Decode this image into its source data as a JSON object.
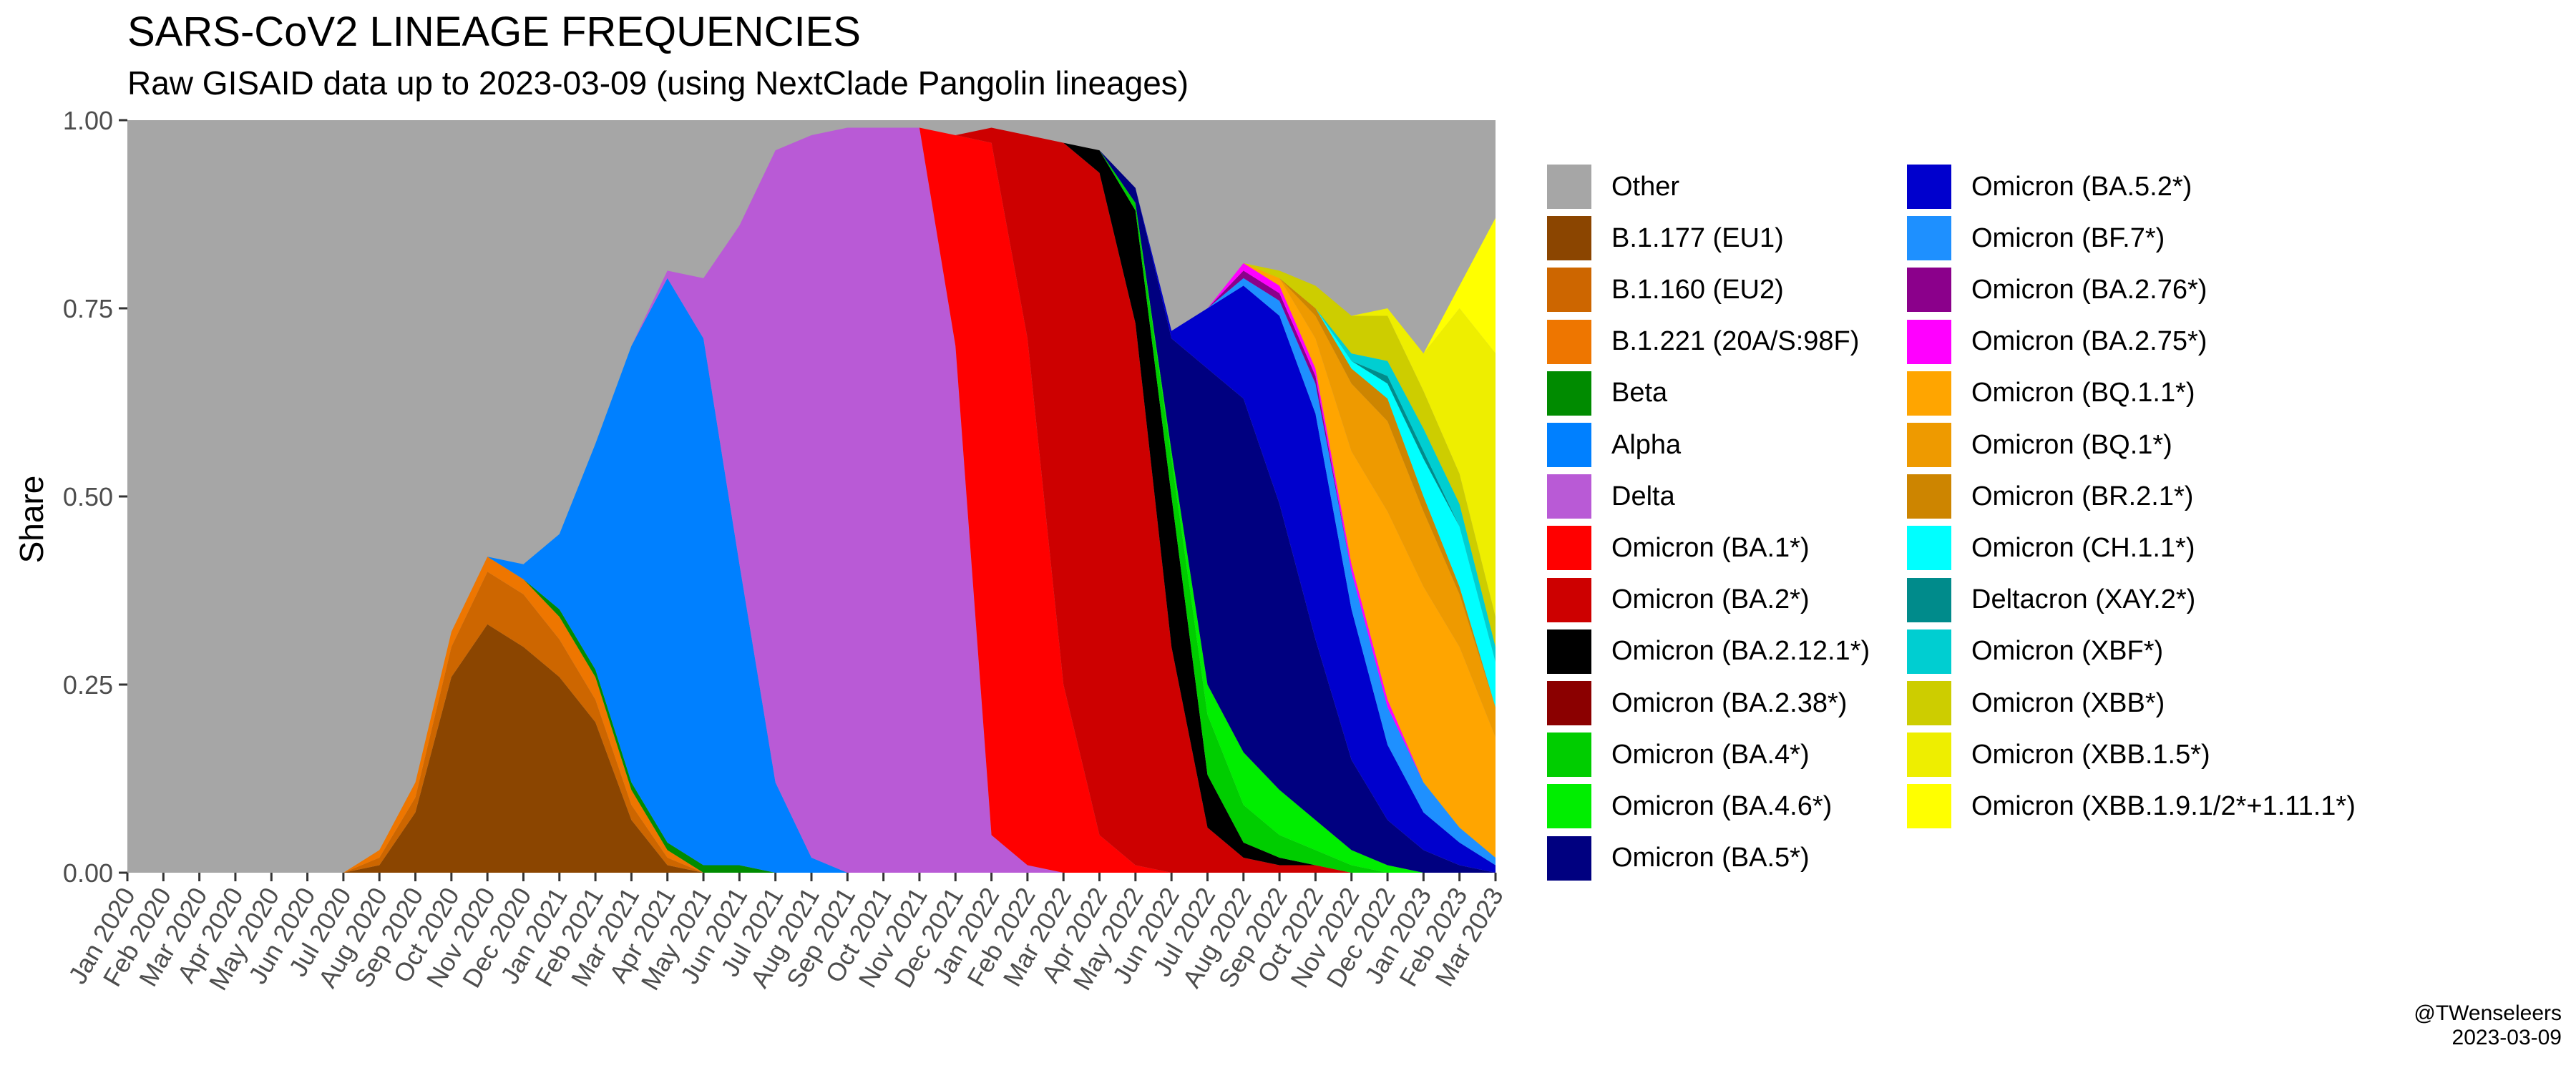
{
  "chart_data": {
    "type": "area",
    "title": "SARS-CoV2 LINEAGE FREQUENCIES",
    "subtitle": "Raw GISAID data up to 2023-03-09 (using NextClade Pangolin lineages)",
    "ylabel": "Share",
    "ylim": [
      0,
      1
    ],
    "stacking": "fill",
    "grid": false,
    "legend_position": "right",
    "yticks": [
      "0.00",
      "0.25",
      "0.50",
      "0.75",
      "1.00"
    ],
    "x_labels": [
      "Jan 2020",
      "Feb 2020",
      "Mar 2020",
      "Apr 2020",
      "May 2020",
      "Jun 2020",
      "Jul 2020",
      "Aug 2020",
      "Sep 2020",
      "Oct 2020",
      "Nov 2020",
      "Dec 2020",
      "Jan 2021",
      "Feb 2021",
      "Mar 2021",
      "Apr 2021",
      "May 2021",
      "Jun 2021",
      "Jul 2021",
      "Aug 2021",
      "Sep 2021",
      "Oct 2021",
      "Nov 2021",
      "Dec 2021",
      "Jan 2022",
      "Feb 2022",
      "Mar 2022",
      "Apr 2022",
      "May 2022",
      "Jun 2022",
      "Jul 2022",
      "Aug 2022",
      "Sep 2022",
      "Oct 2022",
      "Nov 2022",
      "Dec 2022",
      "Jan 2023",
      "Feb 2023",
      "Mar 2023"
    ],
    "series": [
      {
        "name": "B.1.177 (EU1)",
        "color": "#8B4500",
        "values": [
          0,
          0,
          0,
          0,
          0,
          0,
          0,
          0.01,
          0.08,
          0.26,
          0.33,
          0.3,
          0.26,
          0.2,
          0.07,
          0.01,
          0,
          0,
          0,
          0,
          0,
          0,
          0,
          0,
          0,
          0,
          0,
          0,
          0,
          0,
          0,
          0,
          0,
          0,
          0,
          0,
          0,
          0,
          0
        ]
      },
      {
        "name": "B.1.160 (EU2)",
        "color": "#CD6600",
        "values": [
          0,
          0,
          0,
          0,
          0,
          0,
          0,
          0.01,
          0.02,
          0.04,
          0.07,
          0.07,
          0.05,
          0.03,
          0.02,
          0.01,
          0,
          0,
          0,
          0,
          0,
          0,
          0,
          0,
          0,
          0,
          0,
          0,
          0,
          0,
          0,
          0,
          0,
          0,
          0,
          0,
          0,
          0,
          0
        ]
      },
      {
        "name": "B.1.221 (20A/S:98F)",
        "color": "#EE7600",
        "values": [
          0,
          0,
          0,
          0,
          0,
          0,
          0,
          0.01,
          0.02,
          0.02,
          0.02,
          0.02,
          0.03,
          0.03,
          0.02,
          0.01,
          0,
          0,
          0,
          0,
          0,
          0,
          0,
          0,
          0,
          0,
          0,
          0,
          0,
          0,
          0,
          0,
          0,
          0,
          0,
          0,
          0,
          0,
          0
        ]
      },
      {
        "name": "Beta",
        "color": "#008B00",
        "values": [
          0,
          0,
          0,
          0,
          0,
          0,
          0,
          0,
          0,
          0,
          0,
          0,
          0.01,
          0.01,
          0.01,
          0.01,
          0.01,
          0.01,
          0,
          0,
          0,
          0,
          0,
          0,
          0,
          0,
          0,
          0,
          0,
          0,
          0,
          0,
          0,
          0,
          0,
          0,
          0,
          0,
          0
        ]
      },
      {
        "name": "Alpha",
        "color": "#0080FF",
        "values": [
          0,
          0,
          0,
          0,
          0,
          0,
          0,
          0,
          0,
          0,
          0,
          0.02,
          0.1,
          0.3,
          0.58,
          0.75,
          0.7,
          0.4,
          0.12,
          0.02,
          0,
          0,
          0,
          0,
          0,
          0,
          0,
          0,
          0,
          0,
          0,
          0,
          0,
          0,
          0,
          0,
          0,
          0,
          0
        ]
      },
      {
        "name": "Delta",
        "color": "#B95AD6",
        "values": [
          0,
          0,
          0,
          0,
          0,
          0,
          0,
          0,
          0,
          0,
          0,
          0,
          0,
          0,
          0,
          0.01,
          0.08,
          0.45,
          0.84,
          0.96,
          0.99,
          0.99,
          0.99,
          0.7,
          0.05,
          0.01,
          0,
          0,
          0,
          0,
          0,
          0,
          0,
          0,
          0,
          0,
          0,
          0,
          0
        ]
      },
      {
        "name": "Omicron (BA.1*)",
        "color": "#FF0000",
        "values": [
          0,
          0,
          0,
          0,
          0,
          0,
          0,
          0,
          0,
          0,
          0,
          0,
          0,
          0,
          0,
          0,
          0,
          0,
          0,
          0,
          0,
          0,
          0,
          0.28,
          0.92,
          0.7,
          0.25,
          0.05,
          0.01,
          0,
          0,
          0,
          0,
          0,
          0,
          0,
          0,
          0,
          0
        ]
      },
      {
        "name": "Omicron (BA.2*)",
        "color": "#CD0000",
        "values": [
          0,
          0,
          0,
          0,
          0,
          0,
          0,
          0,
          0,
          0,
          0,
          0,
          0,
          0,
          0,
          0,
          0,
          0,
          0,
          0,
          0,
          0,
          0,
          0,
          0.02,
          0.27,
          0.72,
          0.88,
          0.72,
          0.3,
          0.06,
          0.02,
          0.01,
          0.01,
          0,
          0,
          0,
          0,
          0
        ]
      },
      {
        "name": "Omicron (BA.2.12.1*)",
        "color": "#000000",
        "values": [
          0,
          0,
          0,
          0,
          0,
          0,
          0,
          0,
          0,
          0,
          0,
          0,
          0,
          0,
          0,
          0,
          0,
          0,
          0,
          0,
          0,
          0,
          0,
          0,
          0,
          0,
          0,
          0.03,
          0.15,
          0.2,
          0.07,
          0.02,
          0.01,
          0,
          0,
          0,
          0,
          0,
          0
        ]
      },
      {
        "name": "Omicron (BA.2.38*)",
        "color": "#8B0000",
        "values": [
          0,
          0,
          0,
          0,
          0,
          0,
          0,
          0,
          0,
          0,
          0,
          0,
          0,
          0,
          0,
          0,
          0,
          0,
          0,
          0,
          0,
          0,
          0,
          0,
          0,
          0,
          0,
          0,
          0,
          0,
          0,
          0,
          0,
          0,
          0,
          0,
          0,
          0,
          0
        ]
      },
      {
        "name": "Omicron (BA.4*)",
        "color": "#00CD00",
        "values": [
          0,
          0,
          0,
          0,
          0,
          0,
          0,
          0,
          0,
          0,
          0,
          0,
          0,
          0,
          0,
          0,
          0,
          0,
          0,
          0,
          0,
          0,
          0,
          0,
          0,
          0,
          0,
          0,
          0.01,
          0.05,
          0.08,
          0.05,
          0.03,
          0.02,
          0.01,
          0,
          0,
          0,
          0
        ]
      },
      {
        "name": "Omicron (BA.4.6*)",
        "color": "#00EE00",
        "values": [
          0,
          0,
          0,
          0,
          0,
          0,
          0,
          0,
          0,
          0,
          0,
          0,
          0,
          0,
          0,
          0,
          0,
          0,
          0,
          0,
          0,
          0,
          0,
          0,
          0,
          0,
          0,
          0,
          0,
          0.01,
          0.04,
          0.07,
          0.06,
          0.04,
          0.02,
          0.01,
          0,
          0,
          0
        ]
      },
      {
        "name": "Omicron (BA.5*)",
        "color": "#000080",
        "values": [
          0,
          0,
          0,
          0,
          0,
          0,
          0,
          0,
          0,
          0,
          0,
          0,
          0,
          0,
          0,
          0,
          0,
          0,
          0,
          0,
          0,
          0,
          0,
          0,
          0,
          0,
          0,
          0,
          0.02,
          0.15,
          0.42,
          0.47,
          0.38,
          0.24,
          0.12,
          0.06,
          0.03,
          0.01,
          0
        ]
      },
      {
        "name": "Omicron (BA.5.2*)",
        "color": "#0000CD",
        "values": [
          0,
          0,
          0,
          0,
          0,
          0,
          0,
          0,
          0,
          0,
          0,
          0,
          0,
          0,
          0,
          0,
          0,
          0,
          0,
          0,
          0,
          0,
          0,
          0,
          0,
          0,
          0,
          0,
          0,
          0.01,
          0.08,
          0.15,
          0.25,
          0.3,
          0.2,
          0.1,
          0.05,
          0.03,
          0.01
        ]
      },
      {
        "name": "Omicron (BF.7*)",
        "color": "#1E90FF",
        "values": [
          0,
          0,
          0,
          0,
          0,
          0,
          0,
          0,
          0,
          0,
          0,
          0,
          0,
          0,
          0,
          0,
          0,
          0,
          0,
          0,
          0,
          0,
          0,
          0,
          0,
          0,
          0,
          0,
          0,
          0,
          0,
          0.01,
          0.02,
          0.04,
          0.05,
          0.05,
          0.04,
          0.02,
          0.01
        ]
      },
      {
        "name": "Omicron (BA.2.76*)",
        "color": "#8B008B",
        "values": [
          0,
          0,
          0,
          0,
          0,
          0,
          0,
          0,
          0,
          0,
          0,
          0,
          0,
          0,
          0,
          0,
          0,
          0,
          0,
          0,
          0,
          0,
          0,
          0,
          0,
          0,
          0,
          0,
          0,
          0,
          0,
          0.01,
          0.01,
          0.01,
          0,
          0,
          0,
          0,
          0
        ]
      },
      {
        "name": "Omicron (BA.2.75*)",
        "color": "#FF00FF",
        "values": [
          0,
          0,
          0,
          0,
          0,
          0,
          0,
          0,
          0,
          0,
          0,
          0,
          0,
          0,
          0,
          0,
          0,
          0,
          0,
          0,
          0,
          0,
          0,
          0,
          0,
          0,
          0,
          0,
          0,
          0,
          0,
          0.01,
          0.01,
          0.01,
          0.01,
          0.01,
          0,
          0,
          0
        ]
      },
      {
        "name": "Omicron (BQ.1.1*)",
        "color": "#FFA500",
        "values": [
          0,
          0,
          0,
          0,
          0,
          0,
          0,
          0,
          0,
          0,
          0,
          0,
          0,
          0,
          0,
          0,
          0,
          0,
          0,
          0,
          0,
          0,
          0,
          0,
          0,
          0,
          0,
          0,
          0,
          0,
          0,
          0,
          0.01,
          0.04,
          0.15,
          0.25,
          0.26,
          0.24,
          0.16
        ]
      },
      {
        "name": "Omicron (BQ.1*)",
        "color": "#EE9A00",
        "values": [
          0,
          0,
          0,
          0,
          0,
          0,
          0,
          0,
          0,
          0,
          0,
          0,
          0,
          0,
          0,
          0,
          0,
          0,
          0,
          0,
          0,
          0,
          0,
          0,
          0,
          0,
          0,
          0,
          0,
          0,
          0,
          0,
          0,
          0.03,
          0.09,
          0.12,
          0.1,
          0.07,
          0.04
        ]
      },
      {
        "name": "Omicron (BR.2.1*)",
        "color": "#CD8500",
        "values": [
          0,
          0,
          0,
          0,
          0,
          0,
          0,
          0,
          0,
          0,
          0,
          0,
          0,
          0,
          0,
          0,
          0,
          0,
          0,
          0,
          0,
          0,
          0,
          0,
          0,
          0,
          0,
          0,
          0,
          0,
          0,
          0,
          0,
          0.01,
          0.02,
          0.03,
          0.02,
          0.01,
          0
        ]
      },
      {
        "name": "Omicron (CH.1.1*)",
        "color": "#00FFFF",
        "values": [
          0,
          0,
          0,
          0,
          0,
          0,
          0,
          0,
          0,
          0,
          0,
          0,
          0,
          0,
          0,
          0,
          0,
          0,
          0,
          0,
          0,
          0,
          0,
          0,
          0,
          0,
          0,
          0,
          0,
          0,
          0,
          0,
          0,
          0,
          0.01,
          0.02,
          0.05,
          0.08,
          0.06
        ]
      },
      {
        "name": "Deltacron (XAY.2*)",
        "color": "#008B8B",
        "values": [
          0,
          0,
          0,
          0,
          0,
          0,
          0,
          0,
          0,
          0,
          0,
          0,
          0,
          0,
          0,
          0,
          0,
          0,
          0,
          0,
          0,
          0,
          0,
          0,
          0,
          0,
          0,
          0,
          0,
          0,
          0,
          0,
          0,
          0,
          0,
          0.01,
          0.01,
          0,
          0
        ]
      },
      {
        "name": "Omicron (XBF*)",
        "color": "#00CED1",
        "values": [
          0,
          0,
          0,
          0,
          0,
          0,
          0,
          0,
          0,
          0,
          0,
          0,
          0,
          0,
          0,
          0,
          0,
          0,
          0,
          0,
          0,
          0,
          0,
          0,
          0,
          0,
          0,
          0,
          0,
          0,
          0,
          0,
          0,
          0,
          0.01,
          0.02,
          0.03,
          0.03,
          0.02
        ]
      },
      {
        "name": "Omicron (XBB*)",
        "color": "#CDCD00",
        "values": [
          0,
          0,
          0,
          0,
          0,
          0,
          0,
          0,
          0,
          0,
          0,
          0,
          0,
          0,
          0,
          0,
          0,
          0,
          0,
          0,
          0,
          0,
          0,
          0,
          0,
          0,
          0,
          0,
          0,
          0,
          0,
          0,
          0.01,
          0.03,
          0.05,
          0.06,
          0.05,
          0.04,
          0.04
        ]
      },
      {
        "name": "Omicron (XBB.1.5*)",
        "color": "#EEEE00",
        "values": [
          0,
          0,
          0,
          0,
          0,
          0,
          0,
          0,
          0,
          0,
          0,
          0,
          0,
          0,
          0,
          0,
          0,
          0,
          0,
          0,
          0,
          0,
          0,
          0,
          0,
          0,
          0,
          0,
          0,
          0,
          0,
          0,
          0,
          0,
          0,
          0.01,
          0.05,
          0.22,
          0.35
        ]
      },
      {
        "name": "Omicron (XBB.1.9.1/2*+1.11.1*)",
        "color": "#FFFF00",
        "values": [
          0,
          0,
          0,
          0,
          0,
          0,
          0,
          0,
          0,
          0,
          0,
          0,
          0,
          0,
          0,
          0,
          0,
          0,
          0,
          0,
          0,
          0,
          0,
          0,
          0,
          0,
          0,
          0,
          0,
          0,
          0,
          0,
          0,
          0,
          0,
          0,
          0,
          0.03,
          0.18
        ]
      }
    ],
    "other": {
      "name": "Other",
      "color": "#A6A6A6"
    },
    "legend_columns": [
      [
        "Other",
        "B.1.177 (EU1)",
        "B.1.160 (EU2)",
        "B.1.221 (20A/S:98F)",
        "Beta",
        "Alpha",
        "Delta",
        "Omicron (BA.1*)",
        "Omicron (BA.2*)",
        "Omicron (BA.2.12.1*)",
        "Omicron (BA.2.38*)",
        "Omicron (BA.4*)",
        "Omicron (BA.4.6*)",
        "Omicron (BA.5*)"
      ],
      [
        "Omicron (BA.5.2*)",
        "Omicron (BF.7*)",
        "Omicron (BA.2.76*)",
        "Omicron (BA.2.75*)",
        "Omicron (BQ.1.1*)",
        "Omicron (BQ.1*)",
        "Omicron (BR.2.1*)",
        "Omicron (CH.1.1*)",
        "Deltacron (XAY.2*)",
        "Omicron (XBF*)",
        "Omicron (XBB*)",
        "Omicron (XBB.1.5*)",
        "Omicron (XBB.1.9.1/2*+1.11.1*)"
      ]
    ]
  },
  "credit": {
    "line1": "@TWenseleers",
    "line2": "2023-03-09"
  }
}
